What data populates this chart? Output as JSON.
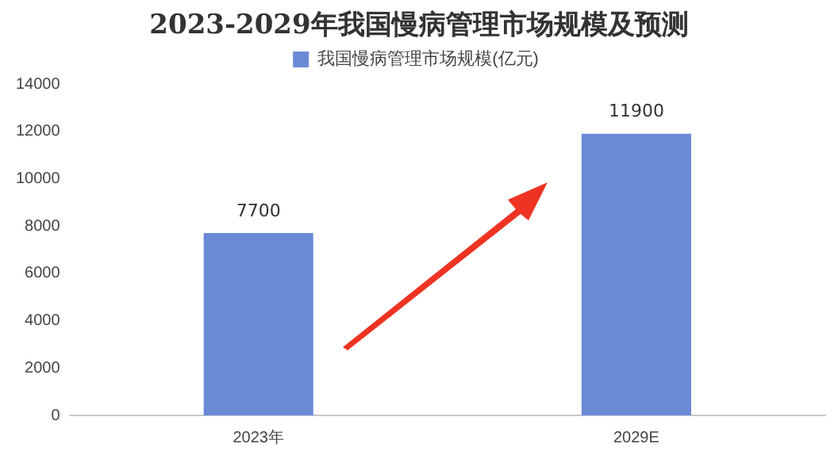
{
  "chart_data": {
    "type": "bar",
    "title": "2023-2029年我国慢病管理市场规模及预测",
    "categories": [
      "2023年",
      "2029E"
    ],
    "series": [
      {
        "name": "我国慢病管理市场规模(亿元)",
        "color": "#6a8ad6",
        "values": [
          7700,
          11900
        ]
      }
    ],
    "ylim": [
      0,
      14000
    ],
    "yticks": [
      0,
      2000,
      4000,
      6000,
      8000,
      10000,
      12000,
      14000
    ],
    "grid": false,
    "legend": "top",
    "data_labels": true
  }
}
